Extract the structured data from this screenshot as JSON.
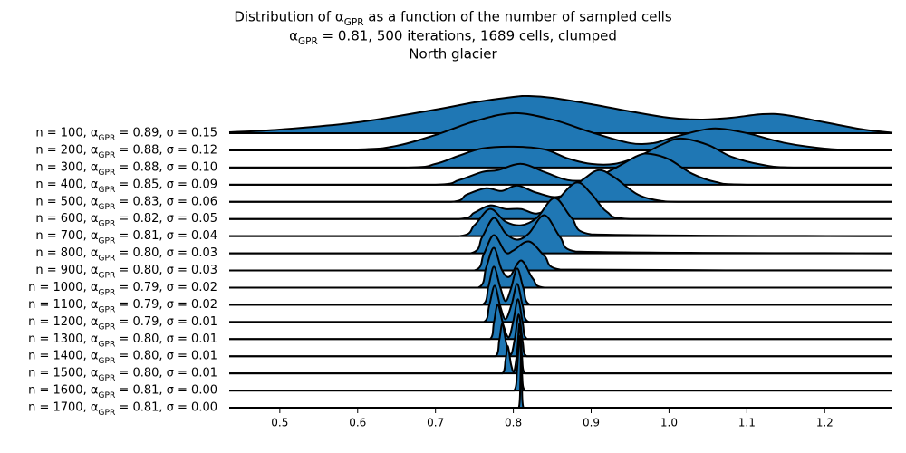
{
  "chart_data": {
    "type": "ridgeline",
    "title": [
      "Distribution of αGPR as a function of the number of sampled cells",
      "αGPR = 0.81, 500 iterations, 1689 cells, clumped",
      "North glacier"
    ],
    "color": "#1f77b4",
    "xlim": [
      0.435,
      1.287
    ],
    "xticks": [
      0.5,
      0.6,
      0.7,
      0.8,
      0.9,
      {
        "value": 1,
        "label": "1.0"
      },
      1.1,
      1.2
    ],
    "series": [
      {
        "name": "n = 100, αGPR = 0.89, σ = 0.15",
        "x": [
          0.435,
          0.5,
          0.6,
          0.7,
          0.75,
          0.8,
          0.82,
          0.85,
          0.9,
          0.95,
          1.0,
          1.04,
          1.08,
          1.12,
          1.15,
          1.2,
          1.25,
          1.287
        ],
        "values": [
          1,
          4,
          12,
          26,
          34,
          40,
          41,
          39,
          32,
          24,
          17,
          15,
          17,
          21,
          20,
          12,
          4,
          0.5
        ]
      },
      {
        "name": "n = 200, αGPR = 0.88, σ = 0.12",
        "x": [
          0.435,
          0.6,
          0.65,
          0.7,
          0.75,
          0.8,
          0.85,
          0.9,
          0.95,
          0.98,
          1.0,
          1.04,
          1.065,
          1.1,
          1.15,
          1.2,
          1.25,
          1.287
        ],
        "values": [
          0,
          1,
          5,
          17,
          32,
          41,
          34,
          20,
          8,
          8,
          13,
          22,
          24,
          19,
          8,
          2,
          0,
          0
        ]
      },
      {
        "name": "n = 300, αGPR = 0.88, σ = 0.10",
        "x": [
          0.435,
          0.66,
          0.7,
          0.73,
          0.76,
          0.8,
          0.84,
          0.87,
          0.9,
          0.93,
          0.96,
          0.99,
          1.015,
          1.05,
          1.08,
          1.12,
          1.16,
          1.287
        ],
        "values": [
          0,
          0,
          4,
          13,
          21,
          23,
          20,
          10,
          4,
          4,
          12,
          25,
          32,
          25,
          12,
          3,
          0,
          0
        ]
      },
      {
        "name": "n = 400, αGPR = 0.85, σ = 0.09",
        "x": [
          0.435,
          0.7,
          0.73,
          0.76,
          0.78,
          0.81,
          0.84,
          0.87,
          0.9,
          0.93,
          0.96,
          0.976,
          1.0,
          1.03,
          1.06,
          1.1,
          1.287
        ],
        "values": [
          0,
          0,
          5,
          14,
          16,
          23,
          14,
          5,
          6,
          18,
          32,
          34,
          28,
          12,
          3,
          0,
          0
        ]
      },
      {
        "name": "n = 500, αGPR = 0.83, σ = 0.06",
        "x": [
          0.435,
          0.72,
          0.74,
          0.765,
          0.785,
          0.805,
          0.83,
          0.86,
          0.89,
          0.91,
          0.93,
          0.96,
          0.99,
          1.02,
          1.287
        ],
        "values": [
          0,
          0,
          8,
          15,
          12,
          18,
          10,
          6,
          25,
          35,
          27,
          8,
          1,
          0,
          0
        ]
      },
      {
        "name": "n = 600, αGPR = 0.82, σ = 0.05",
        "x": [
          0.435,
          0.73,
          0.75,
          0.77,
          0.79,
          0.81,
          0.83,
          0.85,
          0.88,
          0.9,
          0.92,
          0.95,
          1.287
        ],
        "values": [
          0,
          0,
          7,
          15,
          11,
          11,
          6,
          15,
          40,
          28,
          8,
          0,
          0
        ]
      },
      {
        "name": "n = 700, αGPR = 0.81, σ = 0.04",
        "x": [
          0.435,
          0.73,
          0.75,
          0.77,
          0.79,
          0.81,
          0.83,
          0.853,
          0.875,
          0.9,
          1.287
        ],
        "values": [
          0,
          0,
          12,
          30,
          16,
          12,
          20,
          42,
          20,
          2,
          0
        ]
      },
      {
        "name": "n = 800, αGPR = 0.80, σ = 0.03",
        "x": [
          0.435,
          0.745,
          0.76,
          0.775,
          0.79,
          0.805,
          0.82,
          0.84,
          0.86,
          0.88,
          1.287
        ],
        "values": [
          0,
          0,
          18,
          39,
          22,
          15,
          22,
          42,
          18,
          2,
          0
        ]
      },
      {
        "name": "n = 900, αGPR = 0.80, σ = 0.03",
        "x": [
          0.435,
          0.75,
          0.762,
          0.775,
          0.79,
          0.8,
          0.82,
          0.84,
          0.86,
          1.287
        ],
        "values": [
          0,
          0,
          18,
          39,
          20,
          22,
          32,
          16,
          1,
          0
        ]
      },
      {
        "name": "n = 1000, αGPR = 0.79, σ = 0.02",
        "x": [
          0.435,
          0.755,
          0.765,
          0.775,
          0.785,
          0.795,
          0.81,
          0.825,
          0.84,
          1.287
        ],
        "values": [
          0,
          0,
          22,
          44,
          20,
          12,
          30,
          10,
          0,
          0
        ]
      },
      {
        "name": "n = 1100, αGPR = 0.79, σ = 0.02",
        "x": [
          0.435,
          0.76,
          0.768,
          0.775,
          0.783,
          0.79,
          0.797,
          0.805,
          0.813,
          0.822,
          1.287
        ],
        "values": [
          0,
          0,
          20,
          42,
          20,
          4,
          18,
          40,
          18,
          0,
          0
        ]
      },
      {
        "name": "n = 1200, αGPR = 0.79, σ = 0.01",
        "x": [
          0.435,
          0.762,
          0.769,
          0.776,
          0.783,
          0.79,
          0.798,
          0.805,
          0.812,
          0.82,
          1.287
        ],
        "values": [
          0,
          0,
          18,
          40,
          18,
          3,
          20,
          42,
          18,
          0,
          0
        ]
      },
      {
        "name": "n = 1300, αGPR = 0.80, σ = 0.01",
        "x": [
          0.435,
          0.77,
          0.775,
          0.78,
          0.787,
          0.794,
          0.8,
          0.806,
          0.812,
          0.818,
          1.287
        ],
        "values": [
          0,
          0,
          18,
          38,
          16,
          2,
          20,
          44,
          18,
          0,
          0
        ]
      },
      {
        "name": "n = 1400, αGPR = 0.80, σ = 0.01",
        "x": [
          0.435,
          0.777,
          0.782,
          0.786,
          0.791,
          0.797,
          0.802,
          0.807,
          0.812,
          0.817,
          1.287
        ],
        "values": [
          0,
          0,
          18,
          36,
          14,
          2,
          20,
          46,
          16,
          0,
          0
        ]
      },
      {
        "name": "n = 1500, αGPR = 0.80, σ = 0.01",
        "x": [
          0.435,
          0.786,
          0.79,
          0.793,
          0.797,
          0.801,
          0.805,
          0.808,
          0.811,
          0.815,
          1.287
        ],
        "values": [
          0,
          0,
          15,
          30,
          10,
          2,
          25,
          55,
          20,
          0,
          0
        ]
      },
      {
        "name": "n = 1600, αGPR = 0.81, σ = 0.00",
        "x": [
          0.435,
          0.801,
          0.805,
          0.808,
          0.811,
          0.815,
          1.287
        ],
        "values": [
          0,
          0,
          25,
          60,
          20,
          0,
          0
        ]
      },
      {
        "name": "n = 1700, αGPR = 0.81, σ = 0.00",
        "x": [
          0.435,
          0.807,
          0.809,
          0.81,
          0.811,
          0.813,
          1.287
        ],
        "values": [
          0,
          0,
          30,
          70,
          25,
          0,
          0
        ]
      }
    ]
  }
}
